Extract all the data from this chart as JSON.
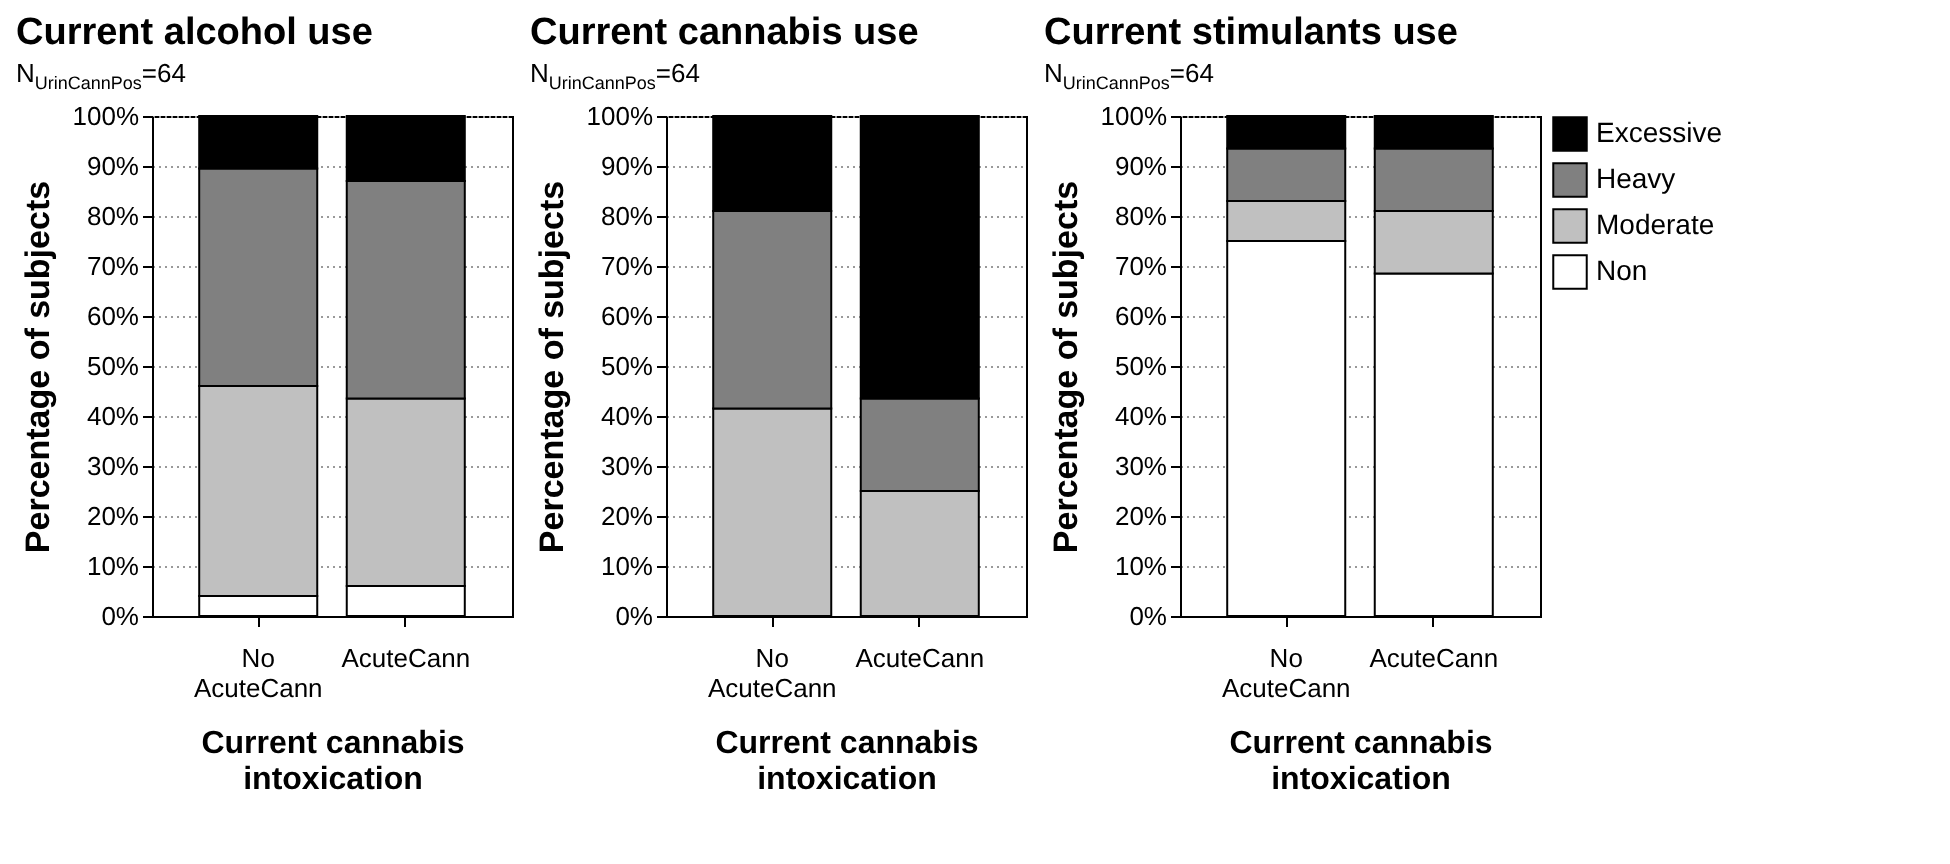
{
  "chart_data": [
    {
      "type": "bar",
      "title": "Current alcohol use",
      "subtitle": "N$_{UrinCannPos}$=64",
      "xlabel": "Current cannabis intoxication",
      "ylabel": "Percentage of subjects",
      "categories": [
        "No AcuteCann",
        "AcuteCann"
      ],
      "stacked": true,
      "ylim": [
        0,
        100
      ],
      "yticks": [
        {
          "value": 0,
          "label": "0%"
        },
        {
          "value": 10,
          "label": "10%"
        },
        {
          "value": 20,
          "label": "20%"
        },
        {
          "value": 30,
          "label": "30%"
        },
        {
          "value": 40,
          "label": "40%"
        },
        {
          "value": 50,
          "label": "50%"
        },
        {
          "value": 60,
          "label": "60%"
        },
        {
          "value": 70,
          "label": "70%"
        },
        {
          "value": 80,
          "label": "80%"
        },
        {
          "value": 90,
          "label": "90%"
        },
        {
          "value": 100,
          "label": "100%"
        }
      ],
      "grid": "y",
      "legend": false,
      "series": [
        {
          "color": "#ffffff",
          "values": [
            4,
            6
          ]
        },
        {
          "color": "#c0c0c0",
          "values": [
            42,
            37.5
          ]
        },
        {
          "color": "#808080",
          "values": [
            43.5,
            43.5
          ]
        },
        {
          "color": "#000000",
          "values": [
            10.5,
            13
          ]
        }
      ]
    },
    {
      "type": "bar",
      "title": "Current cannabis use",
      "subtitle": "N$_{UrinCannPos}$=64",
      "xlabel": "Current cannabis intoxication",
      "ylabel": "Percentage of subjects",
      "categories": [
        "No AcuteCann",
        "AcuteCann"
      ],
      "stacked": true,
      "ylim": [
        0,
        100
      ],
      "yticks": [
        {
          "value": 0,
          "label": "0%"
        },
        {
          "value": 10,
          "label": "10%"
        },
        {
          "value": 20,
          "label": "20%"
        },
        {
          "value": 30,
          "label": "30%"
        },
        {
          "value": 40,
          "label": "40%"
        },
        {
          "value": 50,
          "label": "50%"
        },
        {
          "value": 60,
          "label": "60%"
        },
        {
          "value": 70,
          "label": "70%"
        },
        {
          "value": 80,
          "label": "80%"
        },
        {
          "value": 90,
          "label": "90%"
        },
        {
          "value": 100,
          "label": "100%"
        }
      ],
      "grid": "y",
      "legend": false,
      "series": [
        {
          "color": "#ffffff",
          "values": [
            0,
            0
          ]
        },
        {
          "color": "#c0c0c0",
          "values": [
            41.5,
            25
          ]
        },
        {
          "color": "#808080",
          "values": [
            39.5,
            18.5
          ]
        },
        {
          "color": "#000000",
          "values": [
            19,
            56.5
          ]
        }
      ]
    },
    {
      "type": "bar",
      "title": "Current stimulants use",
      "subtitle": "N$_{UrinCannPos}$=64",
      "xlabel": "Current cannabis intoxication",
      "ylabel": "Percentage of subjects",
      "categories": [
        "No AcuteCann",
        "AcuteCann"
      ],
      "stacked": true,
      "ylim": [
        0,
        100
      ],
      "yticks": [
        {
          "value": 0,
          "label": "0%"
        },
        {
          "value": 10,
          "label": "10%"
        },
        {
          "value": 20,
          "label": "20%"
        },
        {
          "value": 30,
          "label": "30%"
        },
        {
          "value": 40,
          "label": "40%"
        },
        {
          "value": 50,
          "label": "50%"
        },
        {
          "value": 60,
          "label": "60%"
        },
        {
          "value": 70,
          "label": "70%"
        },
        {
          "value": 80,
          "label": "80%"
        },
        {
          "value": 90,
          "label": "90%"
        },
        {
          "value": 100,
          "label": "100%"
        }
      ],
      "grid": "y",
      "legend": "right",
      "series": [
        {
          "name": "Non",
          "color": "#ffffff",
          "values": [
            75,
            68.5
          ]
        },
        {
          "name": "Moderate",
          "color": "#c0c0c0",
          "values": [
            8,
            12.5
          ]
        },
        {
          "name": "Heavy",
          "color": "#808080",
          "values": [
            10.5,
            12.5
          ]
        },
        {
          "name": "Excessive",
          "color": "#000000",
          "values": [
            6.5,
            6.5
          ]
        }
      ]
    }
  ]
}
